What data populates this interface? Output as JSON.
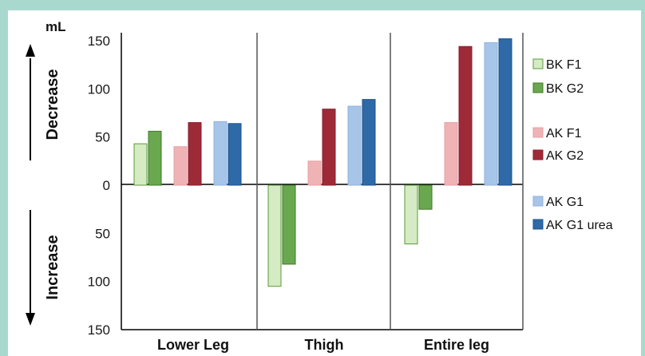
{
  "chart_data": {
    "type": "bar",
    "unit_label": "mL",
    "side_labels": {
      "top": "Decrease",
      "bottom": "Increase"
    },
    "categories": [
      "Lower Leg",
      "Thigh",
      "Entire leg"
    ],
    "ylim": [
      -150,
      150
    ],
    "y_ticks": [
      150,
      100,
      50,
      0,
      -50,
      -100,
      -150
    ],
    "y_tick_labels": [
      "150",
      "100",
      "50",
      "0",
      "50",
      "100",
      "150"
    ],
    "grid": false,
    "legend_position": "right",
    "series": [
      {
        "name": "BK F1",
        "color": "#d5ebc3",
        "stroke": "#5c9a3c",
        "values": [
          43,
          -105,
          -61
        ]
      },
      {
        "name": "BK G2",
        "color": "#6aa84f",
        "stroke": "#3e7a27",
        "values": [
          56,
          -82,
          -25
        ]
      },
      {
        "name": "AK F1",
        "color": "#efb3b6",
        "stroke": "#e5a0a4",
        "values": [
          40,
          25,
          65
        ]
      },
      {
        "name": "AK G2",
        "color": "#9e2a38",
        "stroke": "#8a1e2c",
        "values": [
          65,
          79,
          144
        ]
      },
      {
        "name": "AK G1",
        "color": "#a7c5e8",
        "stroke": "#8fb2dc",
        "values": [
          66,
          82,
          148
        ]
      },
      {
        "name": "AK G1 urea",
        "color": "#2e69a8",
        "stroke": "#1f538c",
        "values": [
          64,
          89,
          152
        ]
      }
    ]
  }
}
